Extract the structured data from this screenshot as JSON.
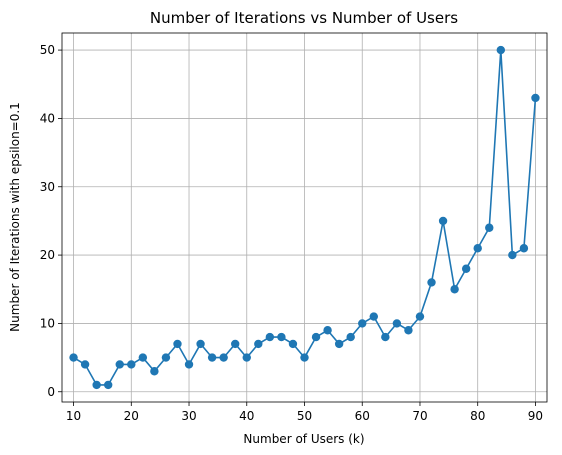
{
  "chart_data": {
    "type": "line",
    "title": "Number of Iterations vs Number of Users",
    "xlabel": "Number of Users (k)",
    "ylabel": "Number of Iterations with epsilon=0.1",
    "xlim": [
      8,
      92
    ],
    "ylim": [
      -1.5,
      52.5
    ],
    "xticks": [
      10,
      20,
      30,
      40,
      50,
      60,
      70,
      80,
      90
    ],
    "yticks": [
      0,
      10,
      20,
      30,
      40,
      50
    ],
    "grid": true,
    "color": "#1f77b4",
    "marker": "circle",
    "x": [
      10,
      12,
      14,
      16,
      18,
      20,
      22,
      24,
      26,
      28,
      30,
      32,
      34,
      36,
      38,
      40,
      42,
      44,
      46,
      48,
      50,
      52,
      54,
      56,
      58,
      60,
      62,
      64,
      66,
      68,
      70,
      72,
      74,
      76,
      78,
      80,
      82,
      84,
      86,
      88,
      90
    ],
    "y": [
      5,
      4,
      1,
      1,
      4,
      4,
      5,
      3,
      5,
      7,
      4,
      7,
      5,
      5,
      7,
      5,
      7,
      8,
      8,
      7,
      5,
      8,
      9,
      7,
      8,
      10,
      11,
      8,
      10,
      9,
      11,
      16,
      25,
      15,
      18,
      21,
      24,
      50,
      20,
      21,
      43
    ]
  }
}
